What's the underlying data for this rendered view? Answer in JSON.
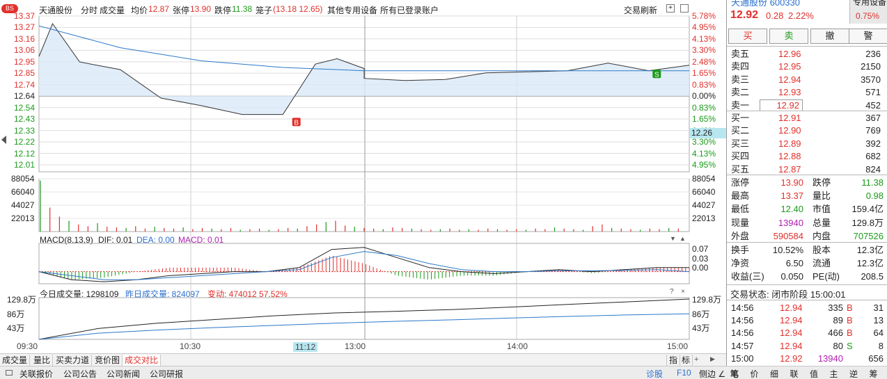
{
  "header": {
    "stock_name": "天通股份",
    "tab_fenshi": "分时",
    "tab_volume": "成交量",
    "avg_label": "均价",
    "avg_value": "12.87",
    "limit_up_label": "张停",
    "limit_up_value": "13.90",
    "limit_down_label": "跌停",
    "limit_down_value": "11.38",
    "cage_label": "笼子",
    "cage_value": "(13.18 12.65)",
    "device_text": "其他专用设备",
    "accounts_text": "所有已登录账户",
    "refresh_label": "交易刷新",
    "bs_badge": "BS"
  },
  "price_axis": {
    "left": [
      "13.37",
      "13.27",
      "13.16",
      "13.06",
      "12.95",
      "12.85",
      "12.74",
      "12.64",
      "12.54",
      "12.43",
      "12.33",
      "12.22",
      "12.12",
      "12.01"
    ],
    "right": [
      "5.78%",
      "4.95%",
      "4.13%",
      "3.30%",
      "2.48%",
      "1.65%",
      "0.83%",
      "0.00%",
      "0.83%",
      "1.65%",
      "2.48%",
      "3.30%",
      "4.13%",
      "4.95%"
    ],
    "current_price": "12.26",
    "marker_b": "B",
    "marker_s": "S"
  },
  "volume_axis": {
    "left": [
      "88054",
      "66040",
      "44027",
      "22013"
    ],
    "right": [
      "88054",
      "66040",
      "44027",
      "22013"
    ]
  },
  "macd": {
    "title": "MACD(8,13,9)",
    "dif_label": "DIF: 0.01",
    "dea_label": "DEA: 0.00",
    "macd_label": "MACD: 0.01",
    "right_axis": [
      "0.07",
      "0.03",
      "0.00"
    ]
  },
  "volume_compare": {
    "today_label": "今日成交量: 1298109",
    "yesterday_label": "昨日成交量: 824097",
    "change_label": "变动: 474012 57.52%",
    "left_axis": [
      "129.8万",
      "86万",
      "43万"
    ],
    "right_axis": [
      "129.8万",
      "86万",
      "43万"
    ]
  },
  "time_axis": [
    "09:30",
    "10:30",
    "11:12",
    "13:00",
    "14:00",
    "15:00"
  ],
  "chart_data": [
    {
      "type": "line",
      "title": "分时",
      "x_range": [
        "09:30",
        "15:00"
      ],
      "ylim": [
        12.01,
        13.37
      ],
      "series": [
        {
          "name": "price",
          "x": [
            "09:30",
            "09:35",
            "09:45",
            "10:00",
            "10:15",
            "10:30",
            "10:45",
            "11:00",
            "11:12",
            "11:20",
            "11:30",
            "13:00",
            "13:15",
            "13:30",
            "13:45",
            "14:00",
            "14:15",
            "14:30",
            "14:45",
            "15:00"
          ],
          "values": [
            13.0,
            13.3,
            12.95,
            12.88,
            12.62,
            12.55,
            12.47,
            12.47,
            12.93,
            12.98,
            12.89,
            12.8,
            12.78,
            12.79,
            12.85,
            12.86,
            12.87,
            12.94,
            12.87,
            12.92
          ]
        },
        {
          "name": "avg",
          "x": [
            "09:30",
            "09:45",
            "10:00",
            "10:30",
            "11:00",
            "11:30",
            "13:00",
            "14:00",
            "15:00"
          ],
          "values": [
            13.28,
            13.18,
            13.08,
            12.96,
            12.9,
            12.87,
            12.87,
            12.87,
            12.87
          ]
        }
      ]
    },
    {
      "type": "bar",
      "title": "成交量",
      "ylim": [
        0,
        88054
      ],
      "values": [
        85000,
        40000,
        25000,
        18000,
        12000,
        9000,
        14000,
        8000,
        7000,
        6000,
        9000,
        5000,
        8000,
        6000,
        5000,
        7000,
        4000,
        6000,
        5000,
        4000,
        6000,
        3000,
        4000,
        5000,
        3000,
        4000,
        6000,
        5000,
        9000,
        12000,
        16000,
        18000,
        10000,
        8000,
        6000,
        5000,
        4000,
        7000,
        6000,
        5000,
        4000,
        3000,
        4000,
        5000,
        3000,
        4000,
        3000,
        5000,
        4000,
        3000,
        4000,
        3000,
        5000,
        4000,
        7000,
        5000,
        4000,
        3000,
        9000,
        12000,
        6000,
        5000,
        4000,
        3000,
        5000,
        4000,
        6000,
        5000
      ]
    },
    {
      "type": "line",
      "title": "MACD(8,13,9)",
      "ylim": [
        -0.03,
        0.07
      ],
      "series": [
        {
          "name": "DIF",
          "values": [
            0.0,
            -0.02,
            -0.025,
            -0.02,
            -0.01,
            -0.005,
            0.0,
            0.0,
            0.01,
            0.055,
            0.06,
            0.035,
            0.01,
            0.0,
            -0.005,
            0.0,
            0.005,
            0.0,
            0.005,
            0.01,
            0.01
          ]
        },
        {
          "name": "DEA",
          "values": [
            0.0,
            -0.01,
            -0.02,
            -0.02,
            -0.015,
            -0.01,
            -0.005,
            0.0,
            0.005,
            0.035,
            0.05,
            0.04,
            0.02,
            0.005,
            0.0,
            0.0,
            0.002,
            0.002,
            0.003,
            0.005,
            0.0
          ]
        },
        {
          "name": "MACD",
          "values": [
            0.0,
            -0.02,
            -0.015,
            0.0,
            0.01,
            0.01,
            0.01,
            0.0,
            0.01,
            0.04,
            0.02,
            -0.01,
            -0.02,
            -0.01,
            -0.01,
            0.0,
            0.006,
            -0.004,
            0.004,
            0.01,
            0.01
          ]
        }
      ]
    },
    {
      "type": "line",
      "title": "成交对比",
      "series": [
        {
          "name": "today",
          "values": [
            0,
            350000,
            520000,
            640000,
            760000,
            850000,
            900000,
            960000,
            1040000,
            1130000,
            1210000,
            1298109
          ]
        },
        {
          "name": "yesterday",
          "values": [
            0,
            200000,
            300000,
            380000,
            450000,
            520000,
            580000,
            630000,
            690000,
            740000,
            790000,
            824097
          ]
        }
      ]
    }
  ],
  "tabs": [
    "成交量",
    "量比",
    "买卖力道",
    "竞价图",
    "成交对比"
  ],
  "tabs_right": [
    "指",
    "标"
  ],
  "statusbar": {
    "items": [
      "关联报价",
      "公司公告",
      "公司新闻",
      "公司研报"
    ],
    "right_diagnose": "诊股",
    "right_f10": "F10",
    "right_side": "侧边 ∠"
  },
  "right_panel": {
    "code_top": "天通股份  600330",
    "special_device": "专用设备",
    "price": "12.92",
    "change": "0.28",
    "change_pct": "2.22%",
    "sector_pct": "0.75%",
    "buttons": [
      "买",
      "卖",
      "撤",
      "警"
    ],
    "asks": [
      {
        "label": "卖五",
        "price": "12.96",
        "vol": "236"
      },
      {
        "label": "卖四",
        "price": "12.95",
        "vol": "2150"
      },
      {
        "label": "卖三",
        "price": "12.94",
        "vol": "3570"
      },
      {
        "label": "卖二",
        "price": "12.93",
        "vol": "571"
      },
      {
        "label": "卖一",
        "price": "12.92",
        "vol": "452"
      }
    ],
    "bids": [
      {
        "label": "买一",
        "price": "12.91",
        "vol": "367"
      },
      {
        "label": "买二",
        "price": "12.90",
        "vol": "769"
      },
      {
        "label": "买三",
        "price": "12.89",
        "vol": "392"
      },
      {
        "label": "买四",
        "price": "12.88",
        "vol": "682"
      },
      {
        "label": "买五",
        "price": "12.87",
        "vol": "824"
      }
    ],
    "stats": [
      {
        "l1": "涨停",
        "v1": "13.90",
        "c1": "red",
        "l2": "跌停",
        "v2": "11.38",
        "c2": "green"
      },
      {
        "l1": "最高",
        "v1": "13.37",
        "c1": "red",
        "l2": "量比",
        "v2": "0.98",
        "c2": "green"
      },
      {
        "l1": "最低",
        "v1": "12.40",
        "c1": "green",
        "l2": "市值",
        "v2": "159.4亿",
        "c2": "dark"
      },
      {
        "l1": "现量",
        "v1": "13940",
        "c1": "purple",
        "l2": "总量",
        "v2": "129.8万",
        "c2": "dark"
      },
      {
        "l1": "外盘",
        "v1": "590584",
        "c1": "red",
        "l2": "内盘",
        "v2": "707526",
        "c2": "green"
      }
    ],
    "stats2": [
      {
        "l1": "换手",
        "v1": "10.52%",
        "l2": "股本",
        "v2": "12.3亿"
      },
      {
        "l1": "净资",
        "v1": "6.50",
        "l2": "流通",
        "v2": "12.3亿"
      },
      {
        "l1": "收益(三)",
        "v1": "0.050",
        "l2": "PE(动)",
        "v2": "208.5"
      }
    ],
    "trade_status": "交易状态: 闭市阶段 15:00:01",
    "ticks": [
      {
        "time": "14:56",
        "price": "12.94",
        "vol": "335",
        "bs": "B",
        "n": "31"
      },
      {
        "time": "14:56",
        "price": "12.94",
        "vol": "89",
        "bs": "B",
        "n": "13"
      },
      {
        "time": "14:56",
        "price": "12.94",
        "vol": "466",
        "bs": "B",
        "n": "64"
      },
      {
        "time": "14:57",
        "price": "12.94",
        "vol": "80",
        "bs": "S",
        "n": "8"
      },
      {
        "time": "15:00",
        "price": "12.92",
        "vol": "13940",
        "bs": "",
        "n": "656"
      }
    ],
    "bottom_tabs": [
      "笔",
      "价",
      "细",
      "联",
      "值",
      "主",
      "逆",
      "筹"
    ]
  },
  "colors": {
    "up": "#e0302b",
    "down": "#1a9a1a",
    "avg_line": "#2a78c8",
    "price_fill": "#d9e8f7",
    "macd_dif": "#222222",
    "macd_dea": "#2a78c8"
  }
}
